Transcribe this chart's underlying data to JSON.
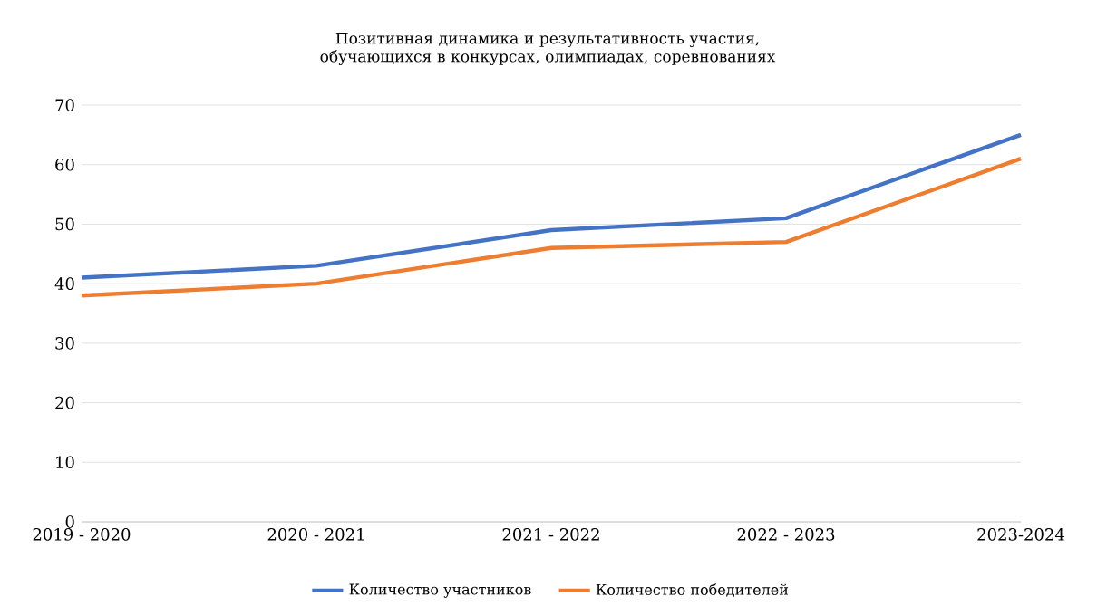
{
  "chart_data": {
    "type": "line",
    "title": "Позитивная динамика и результативность участия, обучающихся в конкурсах, олимпиадах, соревнованиях",
    "categories": [
      "2019 - 2020",
      "2020 - 2021",
      "2021 - 2022",
      "2022 - 2023",
      "2023-2024"
    ],
    "series": [
      {
        "name": "Количество участников",
        "color": "#4472c4",
        "values": [
          41,
          43,
          49,
          51,
          65
        ]
      },
      {
        "name": "Количество победителей",
        "color": "#ed7d31",
        "values": [
          38,
          40,
          46,
          47,
          61
        ]
      }
    ],
    "ylim": [
      0,
      70
    ],
    "yticks": [
      0,
      10,
      20,
      30,
      40,
      50,
      60,
      70
    ],
    "grid": "y",
    "legend": "bottom"
  }
}
